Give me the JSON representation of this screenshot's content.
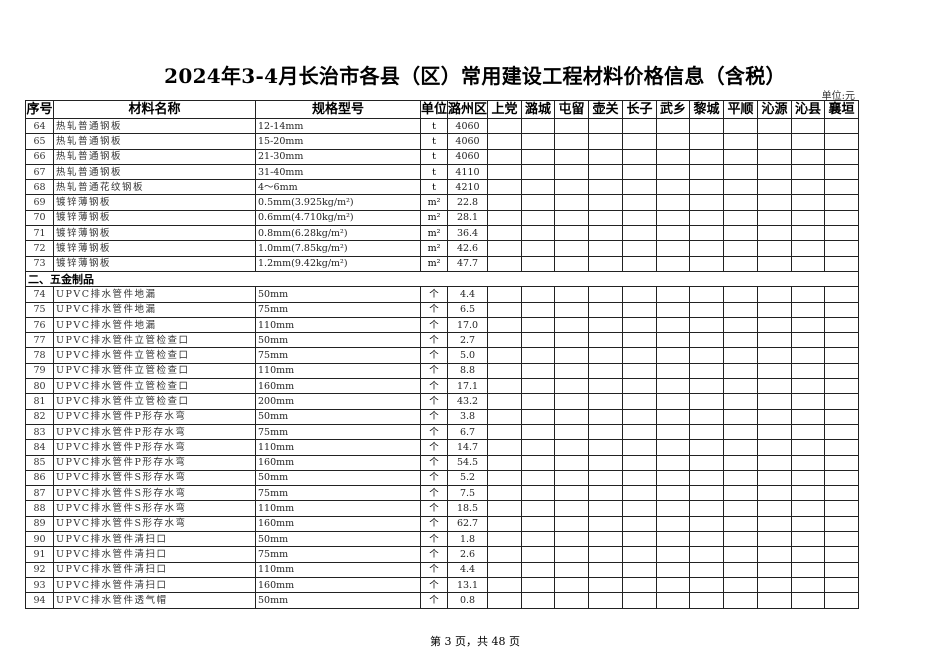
{
  "title": "2024年3-4月长治市各县（区）常用建设工程材料价格信息（含税）",
  "unit_note": "单位:元",
  "headers": [
    "序号",
    "材料名称",
    "规格型号",
    "单位",
    "潞州区",
    "上党",
    "潞城",
    "屯留",
    "壶关",
    "长子",
    "武乡",
    "黎城",
    "平顺",
    "沁源",
    "沁县",
    "襄垣"
  ],
  "rows": [
    {
      "no": "64",
      "name": "热轧普通钢板",
      "spec": "12-14mm",
      "unit": "t",
      "price": "4060"
    },
    {
      "no": "65",
      "name": "热轧普通钢板",
      "spec": "15-20mm",
      "unit": "t",
      "price": "4060"
    },
    {
      "no": "66",
      "name": "热轧普通钢板",
      "spec": "21-30mm",
      "unit": "t",
      "price": "4060"
    },
    {
      "no": "67",
      "name": "热轧普通钢板",
      "spec": "31-40mm",
      "unit": "t",
      "price": "4110"
    },
    {
      "no": "68",
      "name": "热轧普通花纹钢板",
      "spec": "4～6mm",
      "unit": "t",
      "price": "4210"
    },
    {
      "no": "69",
      "name": "镀锌薄钢板",
      "spec": "0.5mm(3.925kg/m²)",
      "unit": "m²",
      "price": "22.8"
    },
    {
      "no": "70",
      "name": "镀锌薄钢板",
      "spec": "0.6mm(4.710kg/m²)",
      "unit": "m²",
      "price": "28.1"
    },
    {
      "no": "71",
      "name": "镀锌薄钢板",
      "spec": "0.8mm(6.28kg/m²)",
      "unit": "m²",
      "price": "36.4"
    },
    {
      "no": "72",
      "name": "镀锌薄钢板",
      "spec": "1.0mm(7.85kg/m²)",
      "unit": "m²",
      "price": "42.6"
    },
    {
      "no": "73",
      "name": "镀锌薄钢板",
      "spec": "1.2mm(9.42kg/m²)",
      "unit": "m²",
      "price": "47.7"
    },
    {
      "section": "二、五金制品"
    },
    {
      "no": "74",
      "name": "UPVC排水管件地漏",
      "spec": "50mm",
      "unit": "个",
      "price": "4.4"
    },
    {
      "no": "75",
      "name": "UPVC排水管件地漏",
      "spec": "75mm",
      "unit": "个",
      "price": "6.5"
    },
    {
      "no": "76",
      "name": "UPVC排水管件地漏",
      "spec": "110mm",
      "unit": "个",
      "price": "17.0"
    },
    {
      "no": "77",
      "name": "UPVC排水管件立管检查口",
      "spec": "50mm",
      "unit": "个",
      "price": "2.7"
    },
    {
      "no": "78",
      "name": "UPVC排水管件立管检查口",
      "spec": "75mm",
      "unit": "个",
      "price": "5.0"
    },
    {
      "no": "79",
      "name": "UPVC排水管件立管检查口",
      "spec": "110mm",
      "unit": "个",
      "price": "8.8"
    },
    {
      "no": "80",
      "name": "UPVC排水管件立管检查口",
      "spec": "160mm",
      "unit": "个",
      "price": "17.1"
    },
    {
      "no": "81",
      "name": "UPVC排水管件立管检查口",
      "spec": "200mm",
      "unit": "个",
      "price": "43.2"
    },
    {
      "no": "82",
      "name": "UPVC排水管件P形存水弯",
      "spec": "50mm",
      "unit": "个",
      "price": "3.8"
    },
    {
      "no": "83",
      "name": "UPVC排水管件P形存水弯",
      "spec": "75mm",
      "unit": "个",
      "price": "6.7"
    },
    {
      "no": "84",
      "name": "UPVC排水管件P形存水弯",
      "spec": "110mm",
      "unit": "个",
      "price": "14.7"
    },
    {
      "no": "85",
      "name": "UPVC排水管件P形存水弯",
      "spec": "160mm",
      "unit": "个",
      "price": "54.5"
    },
    {
      "no": "86",
      "name": "UPVC排水管件S形存水弯",
      "spec": "50mm",
      "unit": "个",
      "price": "5.2"
    },
    {
      "no": "87",
      "name": "UPVC排水管件S形存水弯",
      "spec": "75mm",
      "unit": "个",
      "price": "7.5"
    },
    {
      "no": "88",
      "name": "UPVC排水管件S形存水弯",
      "spec": "110mm",
      "unit": "个",
      "price": "18.5"
    },
    {
      "no": "89",
      "name": "UPVC排水管件S形存水弯",
      "spec": "160mm",
      "unit": "个",
      "price": "62.7"
    },
    {
      "no": "90",
      "name": "UPVC排水管件清扫口",
      "spec": "50mm",
      "unit": "个",
      "price": "1.8"
    },
    {
      "no": "91",
      "name": "UPVC排水管件清扫口",
      "spec": "75mm",
      "unit": "个",
      "price": "2.6"
    },
    {
      "no": "92",
      "name": "UPVC排水管件清扫口",
      "spec": "110mm",
      "unit": "个",
      "price": "4.4"
    },
    {
      "no": "93",
      "name": "UPVC排水管件清扫口",
      "spec": "160mm",
      "unit": "个",
      "price": "13.1"
    },
    {
      "no": "94",
      "name": "UPVC排水管件透气帽",
      "spec": "50mm",
      "unit": "个",
      "price": "0.8"
    }
  ],
  "footer": "第 3 页，共 48 页"
}
